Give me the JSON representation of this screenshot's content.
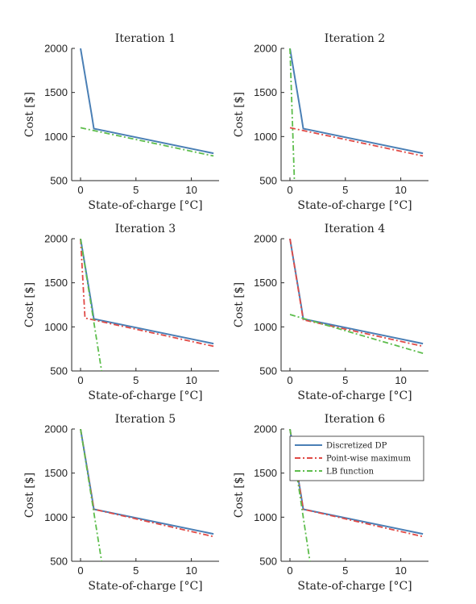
{
  "figure": {
    "colors": {
      "dp": "#4a7fb5",
      "pwm": "#e04a46",
      "lb": "#5dbd4c",
      "axes": "#262626"
    },
    "legend": {
      "placement": "top-right",
      "entries": [
        "Discretized DP",
        "Point-wise maximum",
        "LB function"
      ]
    }
  },
  "chart_data": [
    {
      "type": "line",
      "title": "Iteration 1",
      "xlabel": "State-of-charge [°C]",
      "ylabel": "Cost [$]",
      "xlim": [
        -0.8,
        12.5
      ],
      "ylim": [
        500,
        2000
      ],
      "xticks": [
        0,
        5,
        10
      ],
      "yticks": [
        500,
        1000,
        1500,
        2000
      ],
      "series": [
        {
          "name": "Discretized DP",
          "style": "solid",
          "color": "#4a7fb5",
          "x": [
            0,
            1,
            1.2,
            12
          ],
          "y": [
            2000,
            1250,
            1090,
            810
          ]
        },
        {
          "name": "LB function",
          "style": "dashdot",
          "color": "#5dbd4c",
          "x": [
            0,
            12
          ],
          "y": [
            1100,
            780
          ]
        }
      ]
    },
    {
      "type": "line",
      "title": "Iteration 2",
      "xlabel": "State-of-charge [°C]",
      "ylabel": "Cost [$]",
      "xlim": [
        -0.8,
        12.5
      ],
      "ylim": [
        500,
        2000
      ],
      "xticks": [
        0,
        5,
        10
      ],
      "yticks": [
        500,
        1000,
        1500,
        2000
      ],
      "series": [
        {
          "name": "Discretized DP",
          "style": "solid",
          "color": "#4a7fb5",
          "x": [
            0,
            1,
            1.2,
            12
          ],
          "y": [
            2000,
            1250,
            1090,
            810
          ]
        },
        {
          "name": "Point-wise maximum",
          "style": "dashdot",
          "color": "#e04a46",
          "x": [
            0,
            12
          ],
          "y": [
            1100,
            780
          ]
        },
        {
          "name": "LB function",
          "style": "dashdot",
          "color": "#5dbd4c",
          "x": [
            0,
            0.4
          ],
          "y": [
            2000,
            500
          ]
        }
      ]
    },
    {
      "type": "line",
      "title": "Iteration 3",
      "xlabel": "State-of-charge [°C]",
      "ylabel": "Cost [$]",
      "xlim": [
        -0.8,
        12.5
      ],
      "ylim": [
        500,
        2000
      ],
      "xticks": [
        0,
        5,
        10
      ],
      "yticks": [
        500,
        1000,
        1500,
        2000
      ],
      "series": [
        {
          "name": "Discretized DP",
          "style": "solid",
          "color": "#4a7fb5",
          "x": [
            0,
            1,
            1.2,
            12
          ],
          "y": [
            2000,
            1250,
            1090,
            810
          ]
        },
        {
          "name": "Point-wise maximum",
          "style": "dashdot",
          "color": "#e04a46",
          "x": [
            0,
            0.4,
            12
          ],
          "y": [
            2000,
            1100,
            780
          ]
        },
        {
          "name": "LB function",
          "style": "dashdot",
          "color": "#5dbd4c",
          "x": [
            0,
            1.9
          ],
          "y": [
            2000,
            500
          ]
        }
      ]
    },
    {
      "type": "line",
      "title": "Iteration 4",
      "xlabel": "State-of-charge [°C]",
      "ylabel": "Cost [$]",
      "xlim": [
        -0.8,
        12.5
      ],
      "ylim": [
        500,
        2000
      ],
      "xticks": [
        0,
        5,
        10
      ],
      "yticks": [
        500,
        1000,
        1500,
        2000
      ],
      "series": [
        {
          "name": "Discretized DP",
          "style": "solid",
          "color": "#4a7fb5",
          "x": [
            0,
            1,
            1.2,
            12
          ],
          "y": [
            2000,
            1250,
            1090,
            810
          ]
        },
        {
          "name": "Point-wise maximum",
          "style": "dashdot",
          "color": "#e04a46",
          "x": [
            0,
            1.2,
            12
          ],
          "y": [
            2000,
            1080,
            780
          ]
        },
        {
          "name": "LB function",
          "style": "dashdot",
          "color": "#5dbd4c",
          "x": [
            0,
            12
          ],
          "y": [
            1140,
            700
          ]
        }
      ]
    },
    {
      "type": "line",
      "title": "Iteration 5",
      "xlabel": "State-of-charge [°C]",
      "ylabel": "Cost [$]",
      "xlim": [
        -0.8,
        12.5
      ],
      "ylim": [
        500,
        2000
      ],
      "xticks": [
        0,
        5,
        10
      ],
      "yticks": [
        500,
        1000,
        1500,
        2000
      ],
      "series": [
        {
          "name": "Discretized DP",
          "style": "solid",
          "color": "#4a7fb5",
          "x": [
            0,
            1,
            1.2,
            12
          ],
          "y": [
            2000,
            1250,
            1090,
            810
          ]
        },
        {
          "name": "Point-wise maximum",
          "style": "dashdot",
          "color": "#e04a46",
          "x": [
            0,
            1.2,
            12
          ],
          "y": [
            2000,
            1090,
            780
          ]
        },
        {
          "name": "LB function",
          "style": "dashdot",
          "color": "#5dbd4c",
          "x": [
            0,
            1.9
          ],
          "y": [
            2000,
            500
          ]
        }
      ]
    },
    {
      "type": "line",
      "title": "Iteration 6",
      "xlabel": "State-of-charge [°C]",
      "ylabel": "Cost [$]",
      "xlim": [
        -0.8,
        12.5
      ],
      "ylim": [
        500,
        2000
      ],
      "xticks": [
        0,
        5,
        10
      ],
      "yticks": [
        500,
        1000,
        1500,
        2000
      ],
      "series": [
        {
          "name": "Discretized DP",
          "style": "solid",
          "color": "#4a7fb5",
          "x": [
            0,
            1,
            1.2,
            12
          ],
          "y": [
            2000,
            1250,
            1090,
            810
          ]
        },
        {
          "name": "Point-wise maximum",
          "style": "dashdot",
          "color": "#e04a46",
          "x": [
            0,
            1.2,
            12
          ],
          "y": [
            2000,
            1090,
            780
          ]
        },
        {
          "name": "LB function",
          "style": "dashdot",
          "color": "#5dbd4c",
          "x": [
            0,
            1.8
          ],
          "y": [
            2000,
            500
          ]
        }
      ]
    }
  ]
}
